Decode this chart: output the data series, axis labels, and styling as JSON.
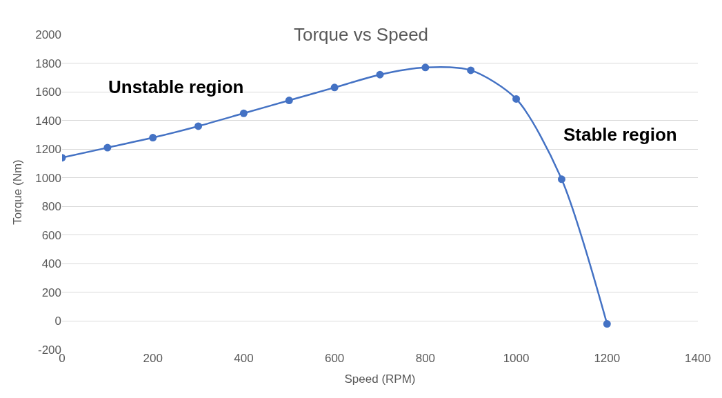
{
  "chart_data": {
    "type": "line",
    "title": "Torque vs Speed",
    "xlabel": "Speed (RPM)",
    "ylabel": "Torque (Nm)",
    "x": [
      0,
      100,
      200,
      300,
      400,
      500,
      600,
      700,
      800,
      900,
      1000,
      1100,
      1200
    ],
    "series": [
      {
        "color": "#4472c4",
        "values": [
          1140,
          1210,
          1280,
          1360,
          1450,
          1540,
          1630,
          1720,
          1770,
          1750,
          1550,
          990,
          -20
        ]
      }
    ],
    "xlim": [
      0,
      1400
    ],
    "xticks": [
      0,
      200,
      400,
      600,
      800,
      1000,
      1200,
      1400
    ],
    "ylim": [
      -200,
      2000
    ],
    "yticks": [
      -200,
      0,
      200,
      400,
      600,
      800,
      1000,
      1200,
      1400,
      1600,
      1800,
      2000
    ],
    "grid": "y",
    "marker": "circle",
    "line_style": "solid",
    "annotations": [
      "Unstable region",
      "Stable region"
    ]
  }
}
